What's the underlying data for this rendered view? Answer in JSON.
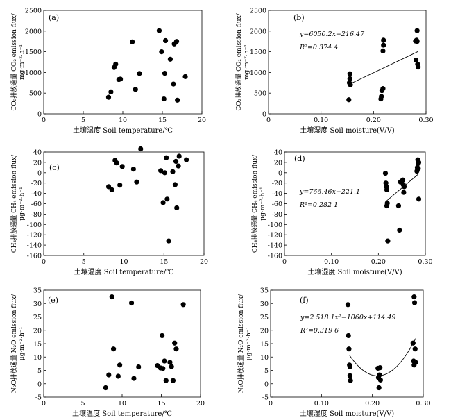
{
  "chart_data": [
    {
      "id": "a",
      "type": "scatter",
      "panel_label": "(a)",
      "xlabel": "土壤温度 Soil temperature/℃",
      "ylabel": "CO₂排放通量 CO₂ emission flux/ mg·m⁻²·h⁻¹",
      "xlim": [
        0,
        20
      ],
      "ylim": [
        0,
        2500
      ],
      "xticks": [
        "0",
        "5",
        "10",
        "15",
        "20"
      ],
      "yticks": [
        "0",
        "500",
        "1000",
        "1500",
        "2000",
        "2500"
      ],
      "points": [
        [
          8.2,
          400
        ],
        [
          8.5,
          530
        ],
        [
          8.9,
          1120
        ],
        [
          9.1,
          1200
        ],
        [
          9.5,
          830
        ],
        [
          9.7,
          840
        ],
        [
          11.2,
          1740
        ],
        [
          11.6,
          590
        ],
        [
          12.1,
          975
        ],
        [
          14.6,
          2010
        ],
        [
          14.9,
          1500
        ],
        [
          15.2,
          360
        ],
        [
          15.3,
          980
        ],
        [
          15.4,
          1770
        ],
        [
          16.0,
          1320
        ],
        [
          16.4,
          720
        ],
        [
          16.5,
          1690
        ],
        [
          16.8,
          1750
        ],
        [
          16.9,
          330
        ],
        [
          17.9,
          900
        ]
      ]
    },
    {
      "id": "b",
      "type": "scatter",
      "panel_label": "(b)",
      "xlabel": "土壤湿度 Soil moisture(V/V)",
      "ylabel": "CO₂排放通量 CO₂ emission flux/ mg·m⁻²·h⁻¹",
      "xlim": [
        0,
        0.3
      ],
      "ylim": [
        0,
        2500
      ],
      "xticks": [
        "0",
        "0.10",
        "0.20",
        "0.30"
      ],
      "yticks": [
        "0",
        "500",
        "1000",
        "1500",
        "2000",
        "2500"
      ],
      "equation": "y=6050.2x−216.47",
      "r2": "R²=0.374 4",
      "fit": {
        "kind": "linear",
        "a": 6050.2,
        "b": -216.47,
        "x_range": [
          0.155,
          0.285
        ]
      },
      "points": [
        [
          0.153,
          340
        ],
        [
          0.154,
          750
        ],
        [
          0.155,
          850
        ],
        [
          0.155,
          970
        ],
        [
          0.156,
          700
        ],
        [
          0.214,
          360
        ],
        [
          0.215,
          420
        ],
        [
          0.216,
          560
        ],
        [
          0.218,
          610
        ],
        [
          0.218,
          1520
        ],
        [
          0.219,
          1660
        ],
        [
          0.219,
          1780
        ],
        [
          0.28,
          1760
        ],
        [
          0.281,
          1300
        ],
        [
          0.282,
          1780
        ],
        [
          0.283,
          1750
        ],
        [
          0.283,
          2010
        ],
        [
          0.284,
          1200
        ],
        [
          0.285,
          1130
        ]
      ]
    },
    {
      "id": "c",
      "type": "scatter",
      "panel_label": "(c)",
      "xlabel": "土壤温度 Soil temperature/℃",
      "ylabel": "CH₄排放通量 CH₄ emission flux/ μg·m⁻²·h⁻¹",
      "xlim": [
        0,
        20
      ],
      "ylim": [
        -160,
        40
      ],
      "xticks": [
        "0",
        "5",
        "10",
        "15",
        "20"
      ],
      "yticks": [
        "-160",
        "-140",
        "-120",
        "-100",
        "-80",
        "-60",
        "-40",
        "-20",
        "0",
        "20",
        "40"
      ],
      "points": [
        [
          8.1,
          -27
        ],
        [
          8.5,
          -33
        ],
        [
          8.9,
          24
        ],
        [
          9.1,
          19
        ],
        [
          9.5,
          -24
        ],
        [
          9.8,
          12
        ],
        [
          11.2,
          7
        ],
        [
          11.6,
          -18
        ],
        [
          12.1,
          46
        ],
        [
          14.6,
          4
        ],
        [
          14.9,
          -58
        ],
        [
          15.1,
          0
        ],
        [
          15.3,
          29
        ],
        [
          15.4,
          -51
        ],
        [
          15.6,
          -132
        ],
        [
          16.1,
          2
        ],
        [
          16.4,
          -23
        ],
        [
          16.5,
          22
        ],
        [
          16.6,
          -68
        ],
        [
          16.8,
          13
        ],
        [
          16.9,
          32
        ],
        [
          17.8,
          25
        ]
      ]
    },
    {
      "id": "d",
      "type": "scatter",
      "panel_label": "(d)",
      "xlabel": "土壤湿度 Soil moisture(V/V)",
      "ylabel": "CH₄排放通量 CH₄ emission flux/ μg·m⁻²·h⁻¹",
      "xlim": [
        0,
        0.3
      ],
      "ylim": [
        -160,
        40
      ],
      "xticks": [
        "0",
        "0.10",
        "0.20",
        "0.30"
      ],
      "yticks": [
        "-160",
        "-140",
        "-120",
        "-100",
        "-80",
        "-60",
        "-40",
        "-20",
        "0",
        "20",
        "40"
      ],
      "equation": "y=766.46x−221.1",
      "r2": "R²=0.282 1",
      "fit": {
        "kind": "linear",
        "a": 766.46,
        "b": -221.1,
        "x_range": [
          0.215,
          0.285
        ]
      },
      "points": [
        [
          0.215,
          -1
        ],
        [
          0.216,
          -20
        ],
        [
          0.217,
          -27
        ],
        [
          0.218,
          -33
        ],
        [
          0.218,
          -64
        ],
        [
          0.219,
          -59
        ],
        [
          0.22,
          -132
        ],
        [
          0.243,
          -64
        ],
        [
          0.245,
          -111
        ],
        [
          0.247,
          -18
        ],
        [
          0.252,
          -14
        ],
        [
          0.253,
          -23
        ],
        [
          0.254,
          -38
        ],
        [
          0.255,
          -27
        ],
        [
          0.282,
          3
        ],
        [
          0.283,
          10
        ],
        [
          0.284,
          25
        ],
        [
          0.285,
          18
        ],
        [
          0.285,
          8
        ],
        [
          0.286,
          20
        ],
        [
          0.286,
          -51
        ]
      ]
    },
    {
      "id": "e",
      "type": "scatter",
      "panel_label": "(e)",
      "xlabel": "土壤温度 Soil temperature/℃",
      "ylabel": "N₂O排放通量 N₂O emission flux/ μg·m⁻²·h⁻¹",
      "xlim": [
        0,
        20
      ],
      "ylim": [
        -5,
        35
      ],
      "xticks": [
        "0",
        "5",
        "10",
        "15",
        "20"
      ],
      "yticks": [
        "-5",
        "0",
        "5",
        "10",
        "15",
        "20",
        "25",
        "30",
        "35"
      ],
      "points": [
        [
          7.9,
          -1.5
        ],
        [
          8.3,
          3.3
        ],
        [
          8.7,
          32.5
        ],
        [
          8.9,
          13
        ],
        [
          9.5,
          2.8
        ],
        [
          9.7,
          7
        ],
        [
          11.2,
          30.2
        ],
        [
          11.5,
          2
        ],
        [
          12.1,
          6.3
        ],
        [
          14.5,
          6.8
        ],
        [
          14.9,
          5.9
        ],
        [
          15.1,
          18
        ],
        [
          15.2,
          5.7
        ],
        [
          15.4,
          8.5
        ],
        [
          15.6,
          1.2
        ],
        [
          16.1,
          8
        ],
        [
          16.3,
          6.4
        ],
        [
          16.5,
          1.2
        ],
        [
          16.7,
          15.2
        ],
        [
          16.9,
          13
        ],
        [
          17.8,
          29.6
        ]
      ]
    },
    {
      "id": "f",
      "type": "scatter",
      "panel_label": "(f)",
      "xlabel": "土壤湿度 Soil moisture(V/V)",
      "ylabel": "N₂O排放通量 N₂O emission flux/ μg·m⁻²·h⁻¹",
      "xlim": [
        0,
        0.3
      ],
      "ylim": [
        -5,
        35
      ],
      "xticks": [
        "0",
        "0.10",
        "0.20",
        "0.30"
      ],
      "yticks": [
        "-5",
        "0",
        "5",
        "10",
        "15",
        "20",
        "25",
        "30",
        "35"
      ],
      "equation": "y=2 518.1x²−1060x+114.49",
      "r2": "R²=0.319 6",
      "fit": {
        "kind": "quadratic",
        "a": 2518.1,
        "b": -1060,
        "c": 114.49,
        "x_range": [
          0.155,
          0.285
        ]
      },
      "points": [
        [
          0.152,
          29.6
        ],
        [
          0.153,
          18
        ],
        [
          0.154,
          13
        ],
        [
          0.155,
          7
        ],
        [
          0.156,
          6.4
        ],
        [
          0.156,
          3
        ],
        [
          0.157,
          1.2
        ],
        [
          0.211,
          5.8
        ],
        [
          0.212,
          2.3
        ],
        [
          0.213,
          -1.5
        ],
        [
          0.214,
          3.3
        ],
        [
          0.215,
          6
        ],
        [
          0.216,
          1.4
        ],
        [
          0.28,
          15.2
        ],
        [
          0.281,
          8.5
        ],
        [
          0.282,
          7
        ],
        [
          0.282,
          32.5
        ],
        [
          0.283,
          30.3
        ],
        [
          0.284,
          13
        ],
        [
          0.285,
          8
        ]
      ]
    }
  ]
}
